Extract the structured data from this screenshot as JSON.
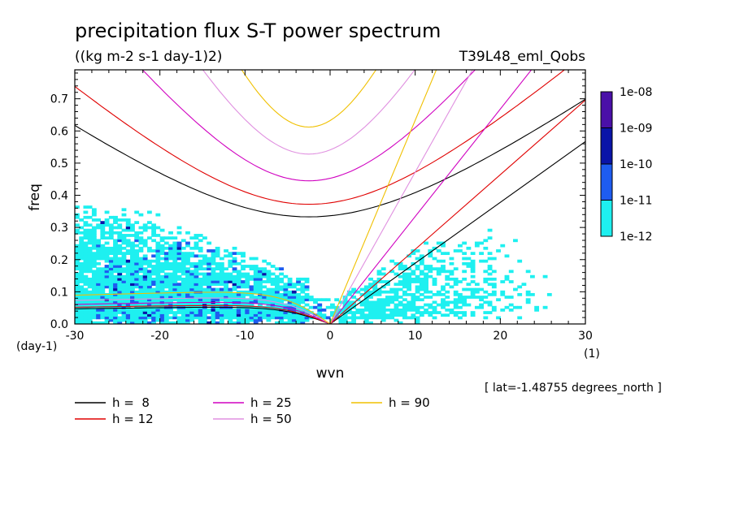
{
  "chart_data": {
    "type": "heatmap",
    "title": "precipitation flux S-T power spectrum",
    "subtitle": "((kg m-2 s-1 day-1)2)",
    "run_label": "T39L48_eml_Qobs",
    "xlabel": "wvn",
    "ylabel": "freq",
    "x_unit": "(1)",
    "y_unit": "(day-1)",
    "xlim": [
      -30,
      30
    ],
    "ylim": [
      0,
      0.79
    ],
    "x_ticks": [
      "-30",
      "-20",
      "-10",
      "0",
      "10",
      "20",
      "30"
    ],
    "y_ticks": [
      "0.0",
      "0.1",
      "0.2",
      "0.3",
      "0.4",
      "0.5",
      "0.6",
      "0.7"
    ],
    "footnote": "[ lat=-1.48755 degrees_north ]",
    "colorbar": {
      "labels": [
        "1e-08",
        "1e-09",
        "1e-10",
        "1e-11",
        "1e-12"
      ],
      "colors": [
        "#4a10a8",
        "#0a14a8",
        "#1e5cf0",
        "#1ef0f0"
      ]
    },
    "legend": [
      {
        "label": "h =  8",
        "color": "#000000"
      },
      {
        "label": "h = 12",
        "color": "#e00000"
      },
      {
        "label": "h = 25",
        "color": "#d000c0"
      },
      {
        "label": "h = 50",
        "color": "#e090e0"
      },
      {
        "label": "h = 90",
        "color": "#f0c000"
      }
    ],
    "dispersion_curves": [
      {
        "h": 8,
        "color": "#000000",
        "mrg_min_freq": 0.333,
        "kelvin_slope": 0.0189,
        "eig_low_max": 0.058
      },
      {
        "h": 12,
        "color": "#e00000",
        "mrg_min_freq": 0.372,
        "kelvin_slope": 0.0232,
        "eig_low_max": 0.064
      },
      {
        "h": 25,
        "color": "#d000c0",
        "mrg_min_freq": 0.445,
        "kelvin_slope": 0.0334,
        "eig_low_max": 0.075
      },
      {
        "h": 50,
        "color": "#e090e0",
        "mrg_min_freq": 0.528,
        "kelvin_slope": 0.0472,
        "eig_low_max": 0.09
      },
      {
        "h": 90,
        "color": "#f0c000",
        "mrg_min_freq": 0.612,
        "kelvin_slope": 0.0633,
        "eig_low_max": 0.11
      }
    ]
  }
}
